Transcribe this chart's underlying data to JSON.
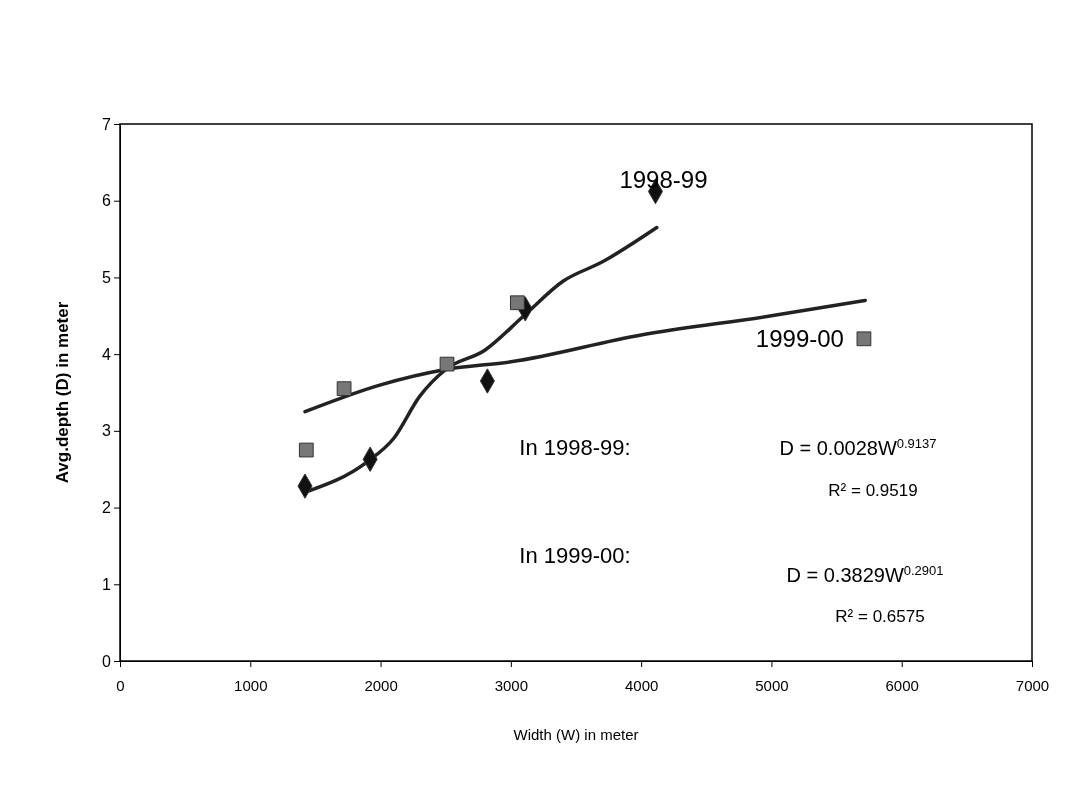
{
  "chart_data": {
    "type": "scatter",
    "xlabel": "Width (W) in meter",
    "ylabel": "Avg.depth (D) in meter",
    "xlim": [
      0,
      7000
    ],
    "xticks": [
      0,
      1000,
      2000,
      3000,
      4000,
      5000,
      6000,
      7000
    ],
    "ylim": [
      0,
      7
    ],
    "yticks": [
      0,
      1,
      2,
      3,
      4,
      5,
      6,
      7
    ],
    "series": [
      {
        "name": "1998-99",
        "type": "scatter",
        "marker": "diamond",
        "color": "#111111",
        "x": [
          1420,
          1920,
          2820,
          3110,
          4110
        ],
        "values": [
          2.28,
          2.63,
          3.65,
          4.59,
          6.12
        ]
      },
      {
        "name": "1999-00",
        "type": "scatter",
        "marker": "square",
        "color": "#777777",
        "x": [
          1430,
          1720,
          2510,
          3050,
          5710
        ],
        "values": [
          2.75,
          3.55,
          3.87,
          4.67,
          4.2
        ]
      },
      {
        "type": "line",
        "color": "#222222",
        "x": [
          1420,
          1900,
          2100,
          2300,
          2500,
          2800,
          3100,
          3400,
          3700,
          4120
        ],
        "values": [
          2.2,
          2.6,
          2.9,
          3.45,
          3.8,
          4.05,
          4.5,
          4.95,
          5.2,
          5.65
        ]
      },
      {
        "type": "line",
        "color": "#222222",
        "x": [
          1420,
          2000,
          2500,
          3000,
          4000,
          5000,
          5720
        ],
        "values": [
          3.25,
          3.6,
          3.8,
          3.9,
          4.25,
          4.5,
          4.7
        ]
      }
    ],
    "annotations": [
      "In 1998-99:",
      "D = 0.0028W$^{0.9137}$",
      "R² = 0.9519",
      "In 1999-00:",
      "D = 0.3829W$^{0.2901}$",
      "R² = 0.6575"
    ]
  }
}
